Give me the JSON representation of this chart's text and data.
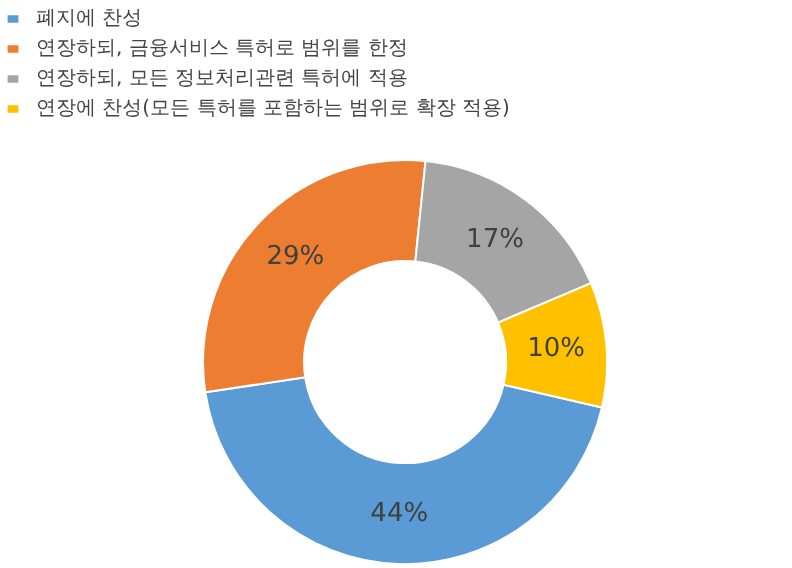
{
  "chart_data": {
    "type": "donut",
    "categories": [
      "폐지에 찬성",
      "연장하되, 금융서비스 특허로 범위를 한정",
      "연장하되, 모든 정보처리관련 특허에 적용",
      "연장에 찬성(모든 특허를 포함하는 범위로 확장 적용)"
    ],
    "values": [
      44,
      29,
      17,
      10
    ],
    "colors": [
      "#5b9bd5",
      "#ed7d31",
      "#a5a5a5",
      "#ffc000"
    ],
    "value_labels": [
      "44%",
      "29%",
      "17%",
      "10%"
    ],
    "legend": "top"
  }
}
